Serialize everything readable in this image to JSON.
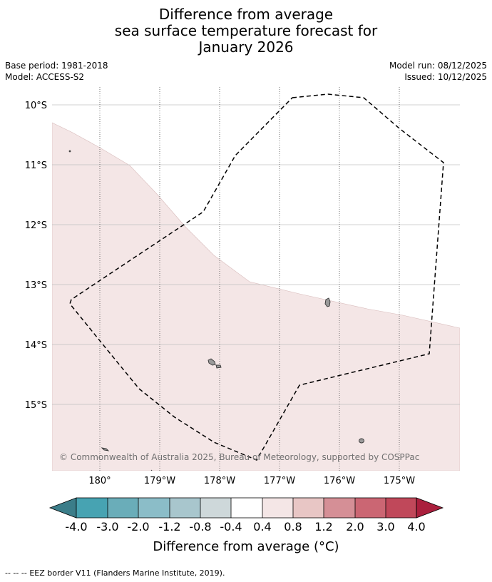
{
  "title": {
    "line1": "Difference from average",
    "line2": "sea surface temperature forecast for",
    "line3": "January 2026"
  },
  "meta": {
    "base_period": "Base period: 1981-2018",
    "model": "Model: ACCESS-S2",
    "model_run": "Model run: 08/12/2025",
    "issued": "Issued: 10/12/2025"
  },
  "map": {
    "lat_labels": [
      "10°S",
      "11°S",
      "12°S",
      "13°S",
      "14°S",
      "15°S"
    ],
    "lon_labels": [
      "180°",
      "179°W",
      "178°W",
      "177°W",
      "176°W",
      "175°W"
    ],
    "attribution": "© Commonwealth of Australia 2025, Bureau of Meteorology, supported by COSPPac",
    "anomaly_color": "#f4e6e6",
    "land_color": "#9a9a9a"
  },
  "colorbar": {
    "tick_labels": [
      "-4.0",
      "-3.0",
      "-2.0",
      "-1.2",
      "-0.8",
      "-0.4",
      "0.4",
      "0.8",
      "1.2",
      "2.0",
      "3.0",
      "4.0"
    ],
    "colors": [
      "#3b7d89",
      "#47a3b2",
      "#6aadb9",
      "#8bbdc8",
      "#a8c6cd",
      "#ced8da",
      "#ffffff",
      "#f4e6e6",
      "#e8c6c5",
      "#d58f96",
      "#cb6673",
      "#c0485a",
      "#aa1f3d"
    ],
    "label": "Difference from average (°C)"
  },
  "footer": {
    "legend_symbol": "--  --  --",
    "legend_text": "EEZ border V11 (Flanders Marine Institute, 2019)."
  }
}
